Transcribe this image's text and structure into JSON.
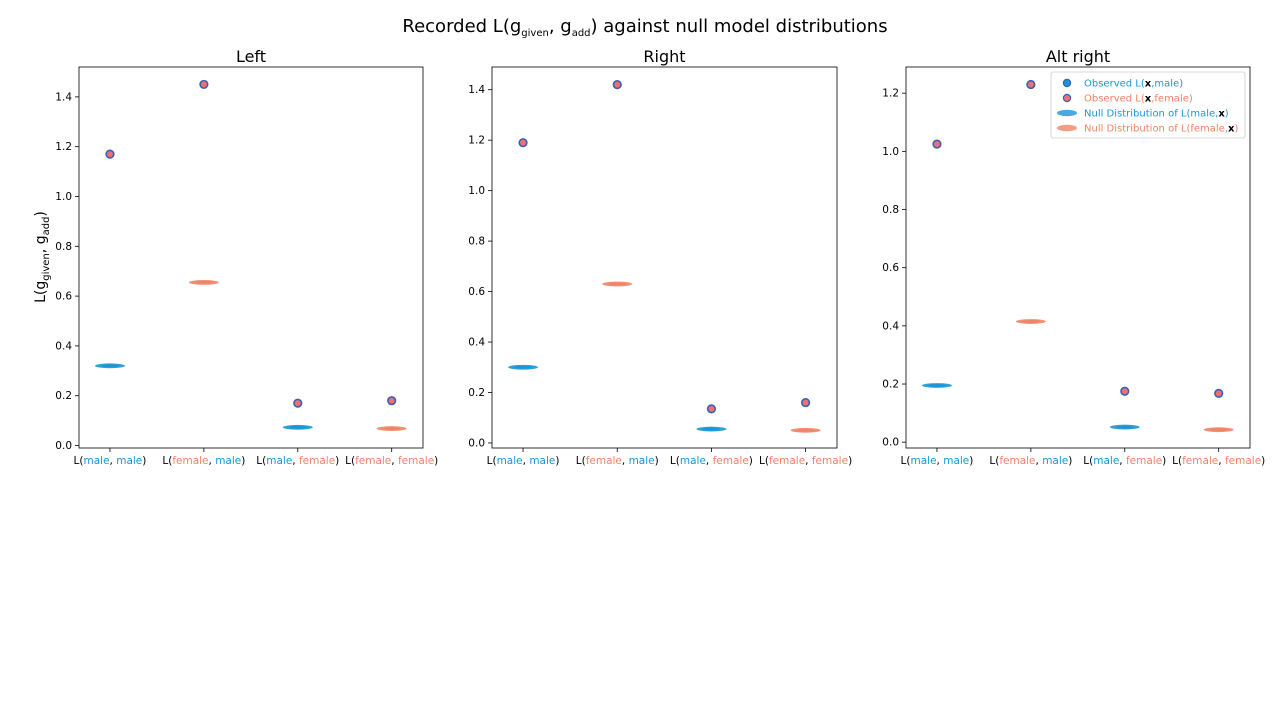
{
  "figure": {
    "title_main": "Recorded L(g",
    "title_sub1": "given",
    "title_mid": ", g",
    "title_sub2": "add",
    "title_end": ") against null model distributions"
  },
  "ylabel": {
    "main": "L(g",
    "sub1": "given",
    "mid": ", g",
    "sub2": "add",
    "end": ")"
  },
  "colors": {
    "male": "#1a96d6",
    "female": "#f08466",
    "observed_fill": "#f07070",
    "observed_edge": "#3a5fb5",
    "axis": "#000000"
  },
  "categories": [
    {
      "parts": [
        {
          "t": "L(",
          "c": "axis"
        },
        {
          "t": "male",
          "c": "male"
        },
        {
          "t": ", ",
          "c": "axis"
        },
        {
          "t": "male",
          "c": "male"
        },
        {
          "t": ")",
          "c": "axis"
        }
      ]
    },
    {
      "parts": [
        {
          "t": "L(",
          "c": "axis"
        },
        {
          "t": "female",
          "c": "female"
        },
        {
          "t": ", ",
          "c": "axis"
        },
        {
          "t": "male",
          "c": "male"
        },
        {
          "t": ")",
          "c": "axis"
        }
      ]
    },
    {
      "parts": [
        {
          "t": "L(",
          "c": "axis"
        },
        {
          "t": "male",
          "c": "male"
        },
        {
          "t": ", ",
          "c": "axis"
        },
        {
          "t": "female",
          "c": "female"
        },
        {
          "t": ")",
          "c": "axis"
        }
      ]
    },
    {
      "parts": [
        {
          "t": "L(",
          "c": "axis"
        },
        {
          "t": "female",
          "c": "female"
        },
        {
          "t": ", ",
          "c": "axis"
        },
        {
          "t": "female",
          "c": "female"
        },
        {
          "t": ")",
          "c": "axis"
        }
      ]
    }
  ],
  "legend": {
    "items": [
      {
        "kind": "observed",
        "color": "male",
        "parts": [
          {
            "t": "Observed L(",
            "c": "male"
          },
          {
            "t": "x",
            "c": "axis",
            "b": true
          },
          {
            "t": ",male)",
            "c": "male"
          }
        ]
      },
      {
        "kind": "observed",
        "color": "female",
        "parts": [
          {
            "t": "Observed L(",
            "c": "female"
          },
          {
            "t": "x",
            "c": "axis",
            "b": true
          },
          {
            "t": ",female)",
            "c": "female"
          }
        ]
      },
      {
        "kind": "null",
        "color": "male",
        "parts": [
          {
            "t": "Null Distribution of L(male,",
            "c": "male"
          },
          {
            "t": "x",
            "c": "axis",
            "b": true
          },
          {
            "t": ")",
            "c": "male"
          }
        ]
      },
      {
        "kind": "null",
        "color": "female",
        "parts": [
          {
            "t": "Null Distribution of L(female,",
            "c": "female"
          },
          {
            "t": "x",
            "c": "axis",
            "b": true
          },
          {
            "t": ")",
            "c": "female"
          }
        ]
      }
    ],
    "placement": "upper right of third panel"
  },
  "chart_data": [
    {
      "type": "scatter",
      "title": "Left",
      "ylim": [
        -0.01,
        1.52
      ],
      "yticks": [
        0.0,
        0.2,
        0.4,
        0.6,
        0.8,
        1.0,
        1.2,
        1.4
      ],
      "null_color": [
        "male",
        "female",
        "male",
        "female"
      ],
      "observed_values": [
        1.17,
        1.45,
        0.17,
        0.18
      ],
      "null_values": [
        0.32,
        0.655,
        0.073,
        0.068
      ],
      "grid": false
    },
    {
      "type": "scatter",
      "title": "Right",
      "ylim": [
        -0.02,
        1.49
      ],
      "yticks": [
        0.0,
        0.2,
        0.4,
        0.6,
        0.8,
        1.0,
        1.2,
        1.4
      ],
      "null_color": [
        "male",
        "female",
        "male",
        "female"
      ],
      "observed_values": [
        1.19,
        1.42,
        0.135,
        0.16
      ],
      "null_values": [
        0.3,
        0.63,
        0.055,
        0.05
      ],
      "grid": false
    },
    {
      "type": "scatter",
      "title": "Alt right",
      "ylim": [
        -0.02,
        1.29
      ],
      "yticks": [
        0.0,
        0.2,
        0.4,
        0.6,
        0.8,
        1.0,
        1.2
      ],
      "null_color": [
        "male",
        "female",
        "male",
        "female"
      ],
      "observed_values": [
        1.025,
        1.23,
        0.175,
        0.168
      ],
      "null_values": [
        0.195,
        0.415,
        0.052,
        0.043
      ],
      "grid": false
    }
  ]
}
